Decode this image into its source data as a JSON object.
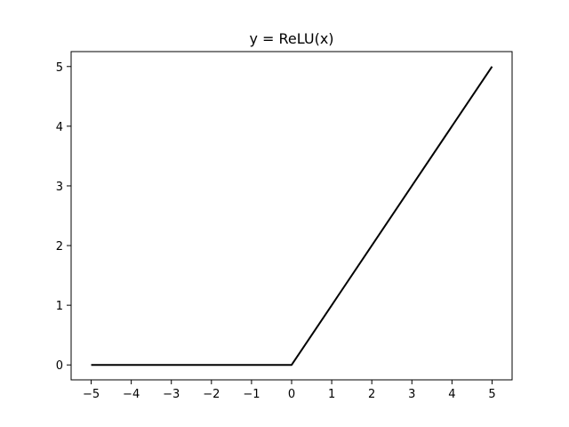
{
  "chart_data": {
    "type": "line",
    "title": "y = ReLU(x)",
    "xlabel": "",
    "ylabel": "",
    "xlim": [
      -5.5,
      5.5
    ],
    "ylim": [
      -0.25,
      5.25
    ],
    "grid": false,
    "xticks": [
      -5,
      -4,
      -3,
      -2,
      -1,
      0,
      1,
      2,
      3,
      4,
      5
    ],
    "xtick_labels": [
      "−5",
      "−4",
      "−3",
      "−2",
      "−1",
      "0",
      "1",
      "2",
      "3",
      "4",
      "5"
    ],
    "yticks": [
      0,
      1,
      2,
      3,
      4,
      5
    ],
    "ytick_labels": [
      "0",
      "1",
      "2",
      "3",
      "4",
      "5"
    ],
    "series": [
      {
        "color": "#000000",
        "x": [
          -5,
          -4,
          -3,
          -2,
          -1,
          0,
          1,
          2,
          3,
          4,
          5
        ],
        "y": [
          0,
          0,
          0,
          0,
          0,
          0,
          1,
          2,
          3,
          4,
          5
        ]
      }
    ]
  }
}
